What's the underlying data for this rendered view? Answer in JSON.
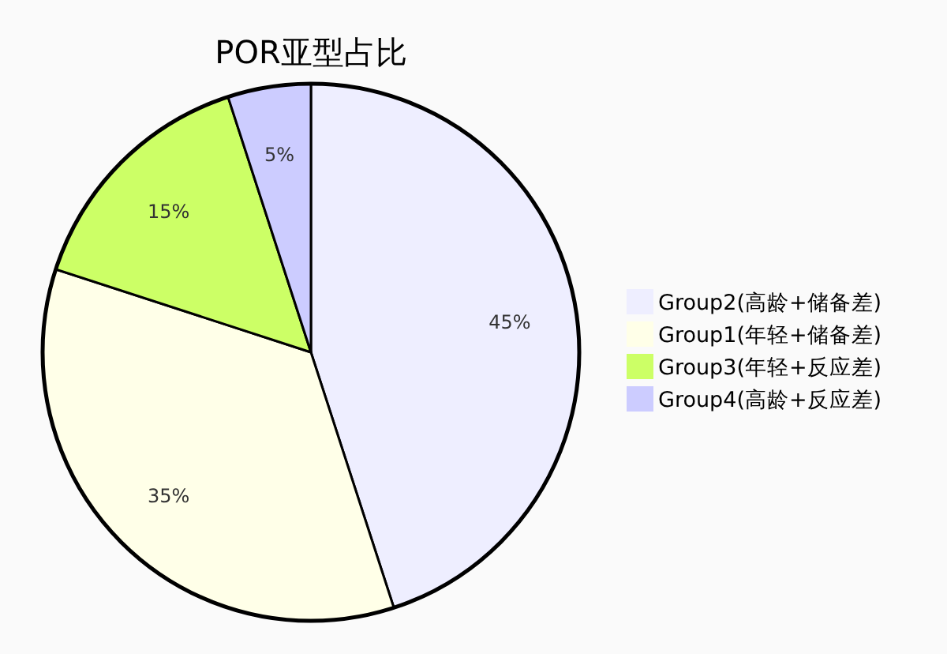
{
  "chart_data": {
    "type": "pie",
    "title": "POR亚型占比",
    "categories": [
      "Group2(高龄+储备差)",
      "Group1(年轻+储备差)",
      "Group3(年轻+反应差)",
      "Group4(高龄+反应差)"
    ],
    "values": [
      45,
      35,
      15,
      5
    ],
    "colors": [
      "#eeeeff",
      "#ffffe8",
      "#ccff66",
      "#ccccff"
    ],
    "value_labels": [
      "45%",
      "35%",
      "15%",
      "5%"
    ],
    "legend": "right"
  }
}
